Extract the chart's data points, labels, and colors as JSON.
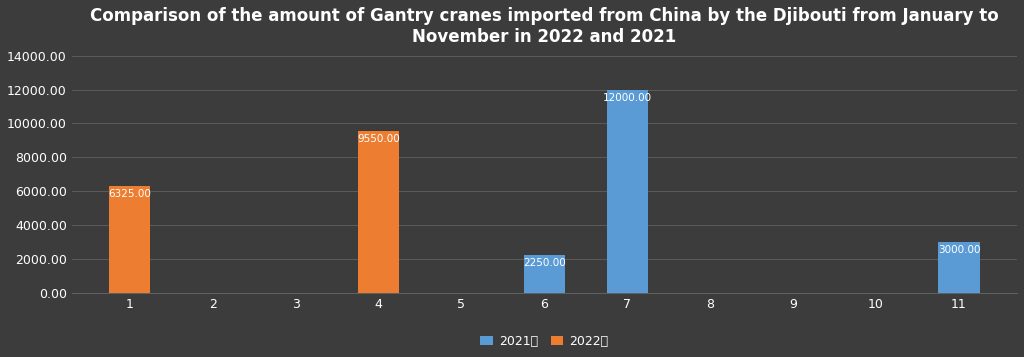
{
  "title": "Comparison of the amount of Gantry cranes imported from China by the Djibouti from January to\nNovember in 2022 and 2021",
  "months": [
    1,
    2,
    3,
    4,
    5,
    6,
    7,
    8,
    9,
    10,
    11
  ],
  "series_2021": [
    0,
    0,
    0,
    0,
    0,
    2250.0,
    12000.0,
    0,
    0,
    0,
    3000.0
  ],
  "series_2022": [
    6325.0,
    0,
    0,
    9550.0,
    0,
    0,
    0,
    0,
    0,
    0,
    0
  ],
  "color_2021": "#5B9BD5",
  "color_2022": "#ED7D31",
  "background_color": "#3C3C3C",
  "plot_bg_color": "#3C3C3C",
  "text_color": "#FFFFFF",
  "grid_color": "#606060",
  "ylim": [
    0,
    14000
  ],
  "yticks": [
    0,
    2000,
    4000,
    6000,
    8000,
    10000,
    12000,
    14000
  ],
  "bar_width": 0.5,
  "legend_2021": "2021年",
  "legend_2022": "2022年",
  "title_fontsize": 12,
  "tick_fontsize": 9,
  "label_fontsize": 7.5
}
